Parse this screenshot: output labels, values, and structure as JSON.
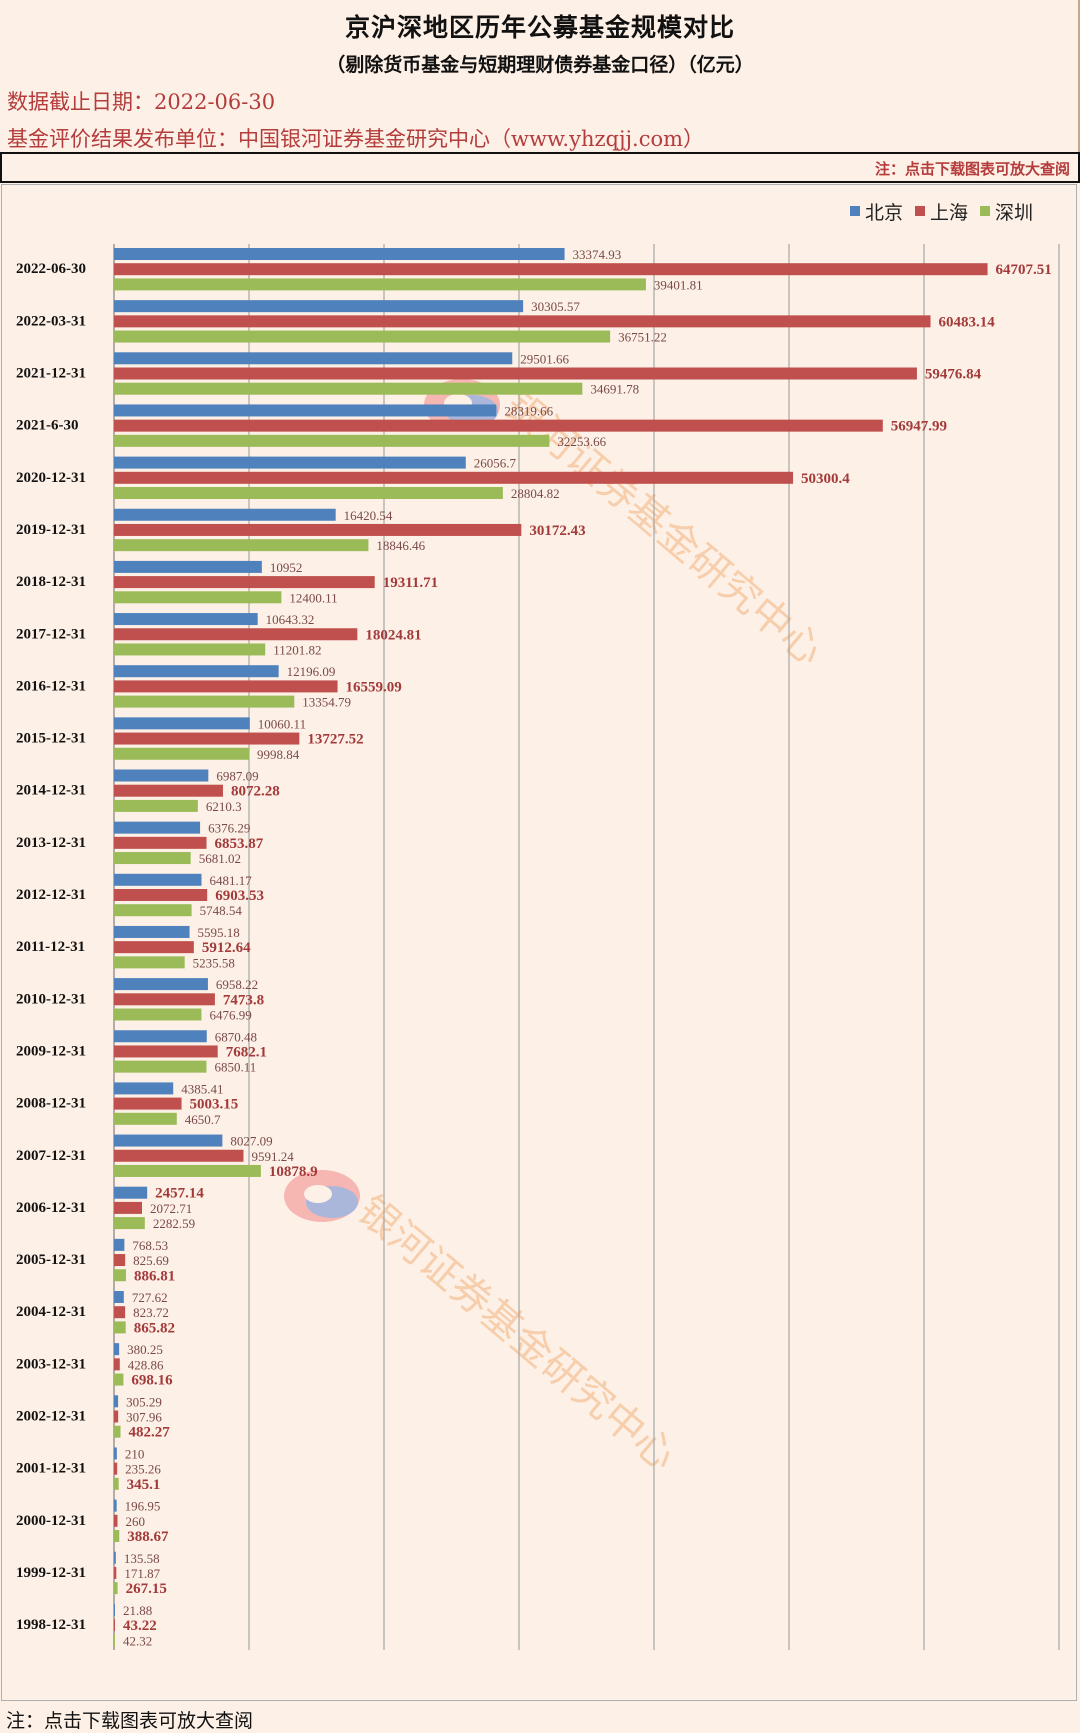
{
  "header": {
    "title": "京沪深地区历年公募基金规模对比",
    "subtitle": "（剔除货币基金与短期理财债券基金口径）（亿元）",
    "cutoff_label": "数据截止日期：2022-06-30",
    "publisher_label": "基金评价结果发布单位：中国银河证券基金研究中心（www.yhzqjj.com）",
    "note_top": "注：点击下载图表可放大查阅"
  },
  "footer": {
    "note_bottom": "注：点击下载图表可放大查阅"
  },
  "watermark": {
    "text": "银河证券基金研究中心"
  },
  "legend": {
    "items": [
      {
        "name": "北京",
        "color": "#4f81bd"
      },
      {
        "name": "上海",
        "color": "#c0504d"
      },
      {
        "name": "深圳",
        "color": "#9bbb59"
      }
    ]
  },
  "chart_data": {
    "type": "bar",
    "orientation": "horizontal",
    "title": "",
    "xlabel": "",
    "ylabel": "",
    "xlim": [
      0,
      70000
    ],
    "grid": true,
    "legend_position": "top-right",
    "categories": [
      "2022-06-30",
      "2022-03-31",
      "2021-12-31",
      "2021-6-30",
      "2020-12-31",
      "2019-12-31",
      "2018-12-31",
      "2017-12-31",
      "2016-12-31",
      "2015-12-31",
      "2014-12-31",
      "2013-12-31",
      "2012-12-31",
      "2011-12-31",
      "2010-12-31",
      "2009-12-31",
      "2008-12-31",
      "2007-12-31",
      "2006-12-31",
      "2005-12-31",
      "2004-12-31",
      "2003-12-31",
      "2002-12-31",
      "2001-12-31",
      "2000-12-31",
      "1999-12-31",
      "1998-12-31"
    ],
    "series": [
      {
        "name": "北京",
        "color": "#4f81bd",
        "values": [
          33374.93,
          30305.57,
          29501.66,
          28319.66,
          26056.7,
          16420.54,
          10952,
          10643.32,
          12196.09,
          10060.11,
          6987.09,
          6376.29,
          6481.17,
          5595.18,
          6958.22,
          6870.48,
          4385.41,
          8027.09,
          2457.14,
          768.53,
          727.62,
          380.25,
          305.29,
          210,
          196.95,
          135.58,
          21.88
        ],
        "labels": [
          "33374.93",
          "30305.57",
          "29501.66",
          "28319.66",
          "26056.7",
          "16420.54",
          "10952",
          "10643.32",
          "12196.09",
          "10060.11",
          "6987.09",
          "6376.29",
          "6481.17",
          "5595.18",
          "6958.22",
          "6870.48",
          "4385.41",
          "8027.09",
          "2457.14",
          "768.53",
          "727.62",
          "380.25",
          "305.29",
          "210",
          "196.95",
          "135.58",
          "21.88"
        ]
      },
      {
        "name": "上海",
        "color": "#c0504d",
        "values": [
          64707.51,
          60483.14,
          59476.84,
          56947.99,
          50300.4,
          30172.43,
          19311.71,
          18024.81,
          16559.09,
          13727.52,
          8072.28,
          6853.87,
          6903.53,
          5912.64,
          7473.8,
          7682.1,
          5003.15,
          9591.24,
          2072.71,
          825.69,
          823.72,
          428.86,
          307.96,
          235.26,
          260,
          171.87,
          43.22
        ],
        "labels": [
          "64707.51",
          "60483.14",
          "59476.84",
          "56947.99",
          "50300.4",
          "30172.43",
          "19311.71",
          "18024.81",
          "16559.09",
          "13727.52",
          "8072.28",
          "6853.87",
          "6903.53",
          "5912.64",
          "7473.8",
          "7682.1",
          "5003.15",
          "9591.24",
          "2072.71",
          "825.69",
          "823.72",
          "428.86",
          "307.96",
          "235.26",
          "260",
          "171.87",
          "43.22"
        ]
      },
      {
        "name": "深圳",
        "color": "#9bbb59",
        "values": [
          39401.81,
          36751.22,
          34691.78,
          32253.66,
          28804.82,
          18846.46,
          12400.11,
          11201.82,
          13354.79,
          9998.84,
          6210.3,
          5681.02,
          5748.54,
          5235.58,
          6476.99,
          6850.11,
          4650.7,
          10878.9,
          2282.59,
          886.81,
          865.82,
          698.16,
          482.27,
          345.1,
          388.67,
          267.15,
          42.32
        ],
        "labels": [
          "39401.81",
          "36751.22",
          "34691.78",
          "32253.66",
          "28804.82",
          "18846.46",
          "12400.11",
          "11201.82",
          "13354.79",
          "9998.84",
          "6210.3",
          "5681.02",
          "5748.54",
          "5235.58",
          "6476.99",
          "6850.11",
          "4650.7",
          "10878.9",
          "2282.59",
          "886.81",
          "865.82",
          "698.16",
          "482.27",
          "345.1",
          "388.67",
          "267.15",
          "42.32"
        ]
      }
    ]
  }
}
